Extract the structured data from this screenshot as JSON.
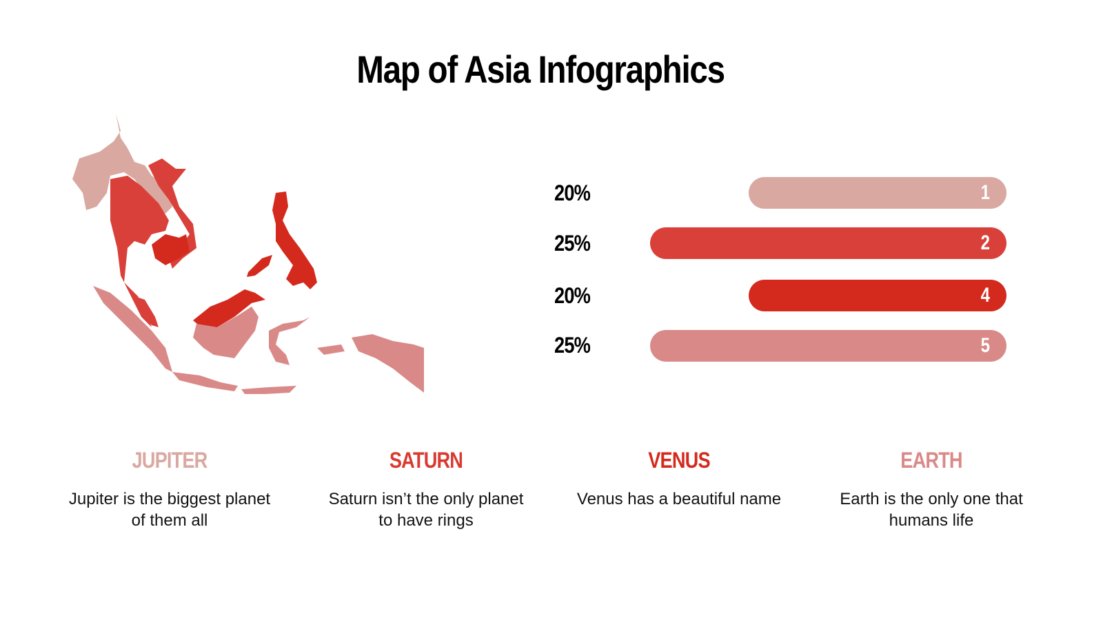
{
  "title": "Map of Asia Infographics",
  "colors": {
    "light": "#d9a8a0",
    "red": "#d9403a",
    "deep": "#d42a1e",
    "pink": "#d98a88"
  },
  "bars": [
    {
      "percent": "20%",
      "value": 20,
      "label": "1",
      "color": "#d9a8a0"
    },
    {
      "percent": "25%",
      "value": 25,
      "label": "2",
      "color": "#d9403a"
    },
    {
      "percent": "20%",
      "value": 20,
      "label": "4",
      "color": "#d42a1e"
    },
    {
      "percent": "25%",
      "value": 25,
      "label": "5",
      "color": "#d98a88"
    }
  ],
  "items": [
    {
      "title": "JUPITER",
      "text": "Jupiter is the biggest planet of them all",
      "color": "#d9a8a0"
    },
    {
      "title": "SATURN",
      "text": "Saturn isn’t the only planet to have rings",
      "color": "#d83a30"
    },
    {
      "title": "VENUS",
      "text": "Venus has a beautiful name",
      "color": "#d42a1e"
    },
    {
      "title": "EARTH",
      "text": "Earth is the only one that humans life",
      "color": "#d98a88"
    }
  ]
}
